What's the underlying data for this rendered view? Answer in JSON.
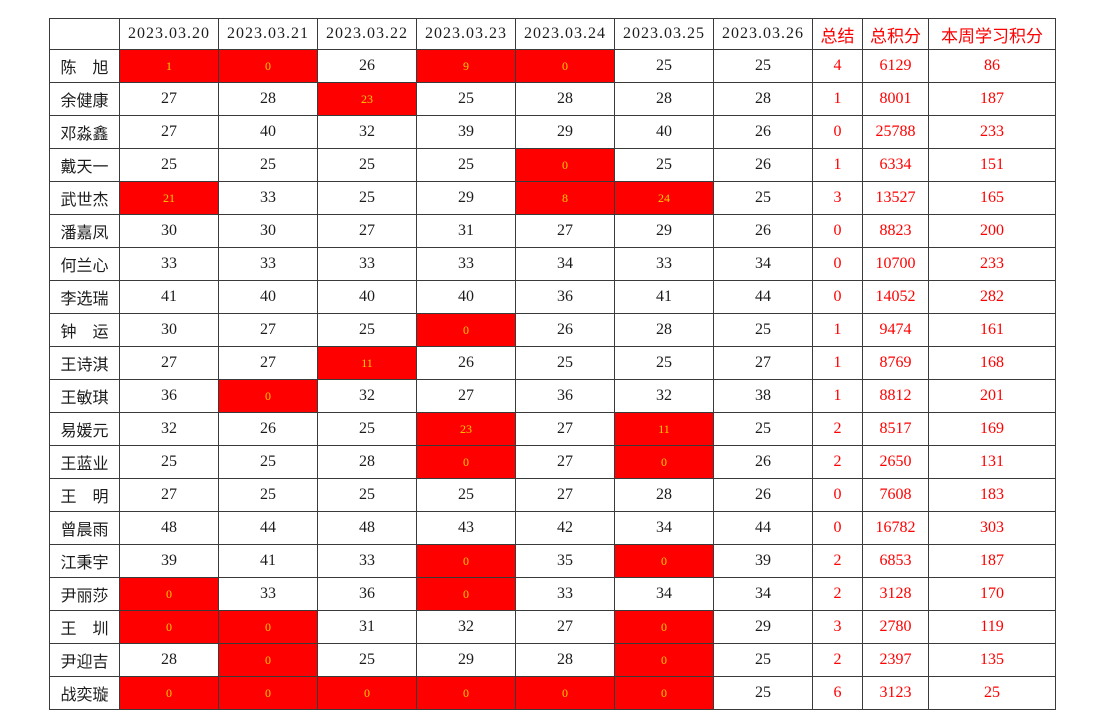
{
  "colors": {
    "background": "#FFFFFF",
    "border": "#3A3A3A",
    "body_text": "#1C1C1C",
    "accent_red": "#FF0000",
    "highlight_fill": "#FF0000",
    "highlight_text": "#FFCC00"
  },
  "table": {
    "corner_label": "",
    "date_headers": [
      "2023.03.20",
      "2023.03.21",
      "2023.03.22",
      "2023.03.23",
      "2023.03.24",
      "2023.03.25",
      "2023.03.26"
    ],
    "summary_headers": [
      "总结",
      "总积分",
      "本周学习积分"
    ],
    "rows": [
      {
        "name": "陈　旭",
        "daily": [
          "1",
          "0",
          "26",
          "9",
          "0",
          "25",
          "25"
        ],
        "highlight": [
          1,
          1,
          0,
          1,
          1,
          0,
          0
        ],
        "summary": "4",
        "total": "6129",
        "week": "86"
      },
      {
        "name": "余健康",
        "daily": [
          "27",
          "28",
          "23",
          "25",
          "28",
          "28",
          "28"
        ],
        "highlight": [
          0,
          0,
          1,
          0,
          0,
          0,
          0
        ],
        "summary": "1",
        "total": "8001",
        "week": "187"
      },
      {
        "name": "邓淼鑫",
        "daily": [
          "27",
          "40",
          "32",
          "39",
          "29",
          "40",
          "26"
        ],
        "highlight": [
          0,
          0,
          0,
          0,
          0,
          0,
          0
        ],
        "summary": "0",
        "total": "25788",
        "week": "233"
      },
      {
        "name": "戴天一",
        "daily": [
          "25",
          "25",
          "25",
          "25",
          "0",
          "25",
          "26"
        ],
        "highlight": [
          0,
          0,
          0,
          0,
          1,
          0,
          0
        ],
        "summary": "1",
        "total": "6334",
        "week": "151"
      },
      {
        "name": "武世杰",
        "daily": [
          "21",
          "33",
          "25",
          "29",
          "8",
          "24",
          "25"
        ],
        "highlight": [
          1,
          0,
          0,
          0,
          1,
          1,
          0
        ],
        "summary": "3",
        "total": "13527",
        "week": "165"
      },
      {
        "name": "潘嘉凤",
        "daily": [
          "30",
          "30",
          "27",
          "31",
          "27",
          "29",
          "26"
        ],
        "highlight": [
          0,
          0,
          0,
          0,
          0,
          0,
          0
        ],
        "summary": "0",
        "total": "8823",
        "week": "200"
      },
      {
        "name": "何兰心",
        "daily": [
          "33",
          "33",
          "33",
          "33",
          "34",
          "33",
          "34"
        ],
        "highlight": [
          0,
          0,
          0,
          0,
          0,
          0,
          0
        ],
        "summary": "0",
        "total": "10700",
        "week": "233"
      },
      {
        "name": "李选瑞",
        "daily": [
          "41",
          "40",
          "40",
          "40",
          "36",
          "41",
          "44"
        ],
        "highlight": [
          0,
          0,
          0,
          0,
          0,
          0,
          0
        ],
        "summary": "0",
        "total": "14052",
        "week": "282"
      },
      {
        "name": "钟　运",
        "daily": [
          "30",
          "27",
          "25",
          "0",
          "26",
          "28",
          "25"
        ],
        "highlight": [
          0,
          0,
          0,
          1,
          0,
          0,
          0
        ],
        "summary": "1",
        "total": "9474",
        "week": "161"
      },
      {
        "name": "王诗淇",
        "daily": [
          "27",
          "27",
          "11",
          "26",
          "25",
          "25",
          "27"
        ],
        "highlight": [
          0,
          0,
          1,
          0,
          0,
          0,
          0
        ],
        "summary": "1",
        "total": "8769",
        "week": "168"
      },
      {
        "name": "王敏琪",
        "daily": [
          "36",
          "0",
          "32",
          "27",
          "36",
          "32",
          "38"
        ],
        "highlight": [
          0,
          1,
          0,
          0,
          0,
          0,
          0
        ],
        "summary": "1",
        "total": "8812",
        "week": "201"
      },
      {
        "name": "易媛元",
        "daily": [
          "32",
          "26",
          "25",
          "23",
          "27",
          "11",
          "25"
        ],
        "highlight": [
          0,
          0,
          0,
          1,
          0,
          1,
          0
        ],
        "summary": "2",
        "total": "8517",
        "week": "169"
      },
      {
        "name": "王蓝业",
        "daily": [
          "25",
          "25",
          "28",
          "0",
          "27",
          "0",
          "26"
        ],
        "highlight": [
          0,
          0,
          0,
          1,
          0,
          1,
          0
        ],
        "summary": "2",
        "total": "2650",
        "week": "131"
      },
      {
        "name": "王　明",
        "daily": [
          "27",
          "25",
          "25",
          "25",
          "27",
          "28",
          "26"
        ],
        "highlight": [
          0,
          0,
          0,
          0,
          0,
          0,
          0
        ],
        "summary": "0",
        "total": "7608",
        "week": "183"
      },
      {
        "name": "曾晨雨",
        "daily": [
          "48",
          "44",
          "48",
          "43",
          "42",
          "34",
          "44"
        ],
        "highlight": [
          0,
          0,
          0,
          0,
          0,
          0,
          0
        ],
        "summary": "0",
        "total": "16782",
        "week": "303"
      },
      {
        "name": "江秉宇",
        "daily": [
          "39",
          "41",
          "33",
          "0",
          "35",
          "0",
          "39"
        ],
        "highlight": [
          0,
          0,
          0,
          1,
          0,
          1,
          0
        ],
        "summary": "2",
        "total": "6853",
        "week": "187"
      },
      {
        "name": "尹丽莎",
        "daily": [
          "0",
          "33",
          "36",
          "0",
          "33",
          "34",
          "34"
        ],
        "highlight": [
          1,
          0,
          0,
          1,
          0,
          0,
          0
        ],
        "summary": "2",
        "total": "3128",
        "week": "170"
      },
      {
        "name": "王　圳",
        "daily": [
          "0",
          "0",
          "31",
          "32",
          "27",
          "0",
          "29"
        ],
        "highlight": [
          1,
          1,
          0,
          0,
          0,
          1,
          0
        ],
        "summary": "3",
        "total": "2780",
        "week": "119"
      },
      {
        "name": "尹迎吉",
        "daily": [
          "28",
          "0",
          "25",
          "29",
          "28",
          "0",
          "25"
        ],
        "highlight": [
          0,
          1,
          0,
          0,
          0,
          1,
          0
        ],
        "summary": "2",
        "total": "2397",
        "week": "135"
      },
      {
        "name": "战奕璇",
        "daily": [
          "0",
          "0",
          "0",
          "0",
          "0",
          "0",
          "25"
        ],
        "highlight": [
          1,
          1,
          1,
          1,
          1,
          1,
          0
        ],
        "summary": "6",
        "total": "3123",
        "week": "25"
      }
    ]
  }
}
